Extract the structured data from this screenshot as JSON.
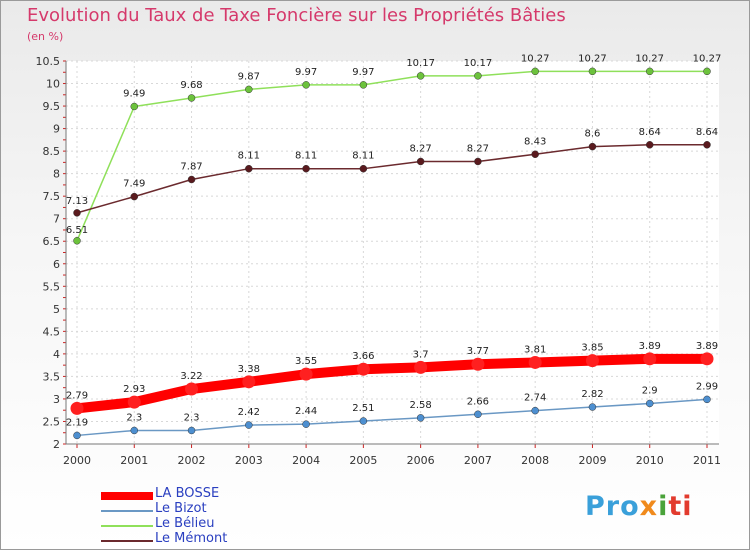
{
  "header": {
    "title": "Evolution du Taux de Taxe Foncière sur les Propriétés Bâties",
    "unit": "(en %)"
  },
  "logo": {
    "p1": "Pro",
    "p2": "x",
    "p3": "i",
    "p4": "ti"
  },
  "chart_data": {
    "type": "line",
    "title": "Evolution du Taux de Taxe Foncière sur les Propriétés Bâties",
    "ylabel": "(en %)",
    "xlabel": "",
    "ylim": [
      2,
      10.5
    ],
    "yticks": [
      "2",
      "2.5",
      "3",
      "3.5",
      "4",
      "4.5",
      "5",
      "5.5",
      "6",
      "6.5",
      "7",
      "7.5",
      "8",
      "8.5",
      "9",
      "9.5",
      "10",
      "10.5"
    ],
    "categories": [
      "2000",
      "2001",
      "2002",
      "2003",
      "2004",
      "2005",
      "2006",
      "2007",
      "2008",
      "2009",
      "2010",
      "2011"
    ],
    "legend_position": "bottom-left",
    "series": [
      {
        "name": "LA BOSSE",
        "color": "#ff0000",
        "marker": "#ff2020",
        "values": [
          2.79,
          2.93,
          3.22,
          3.38,
          3.55,
          3.66,
          3.7,
          3.77,
          3.81,
          3.85,
          3.89,
          3.89
        ],
        "labels": [
          "2.79",
          "2.93",
          "3.22",
          "3.38",
          "3.55",
          "3.66",
          "3.7",
          "3.77",
          "3.81",
          "3.85",
          "3.89",
          "3.89"
        ]
      },
      {
        "name": "Le Bizot",
        "color": "#6a98c4",
        "marker": "#4d8fd0",
        "values": [
          2.19,
          2.3,
          2.3,
          2.42,
          2.44,
          2.51,
          2.58,
          2.66,
          2.74,
          2.82,
          2.9,
          2.99
        ],
        "labels": [
          "2.19",
          "2.3",
          "2.3",
          "2.42",
          "2.44",
          "2.51",
          "2.58",
          "2.66",
          "2.74",
          "2.82",
          "2.9",
          "2.99"
        ]
      },
      {
        "name": "Le Bélieu",
        "color": "#8fe05a",
        "marker": "#6cc23c",
        "values": [
          6.51,
          9.49,
          9.68,
          9.87,
          9.97,
          9.97,
          10.17,
          10.17,
          10.27,
          10.27,
          10.27,
          10.27
        ],
        "labels": [
          "6.51",
          "9.49",
          "9.68",
          "9.87",
          "9.97",
          "9.97",
          "10.17",
          "10.17",
          "10.27",
          "10.27",
          "10.27",
          "10.27"
        ]
      },
      {
        "name": "Le Mémont",
        "color": "#6b2a2e",
        "marker": "#5a1a1e",
        "values": [
          7.13,
          7.49,
          7.87,
          8.11,
          8.11,
          8.11,
          8.27,
          8.27,
          8.43,
          8.6,
          8.64,
          8.64
        ],
        "labels": [
          "7.13",
          "7.49",
          "7.87",
          "8.11",
          "8.11",
          "8.11",
          "8.27",
          "8.27",
          "8.43",
          "8.6",
          "8.64",
          "8.64"
        ]
      }
    ]
  }
}
